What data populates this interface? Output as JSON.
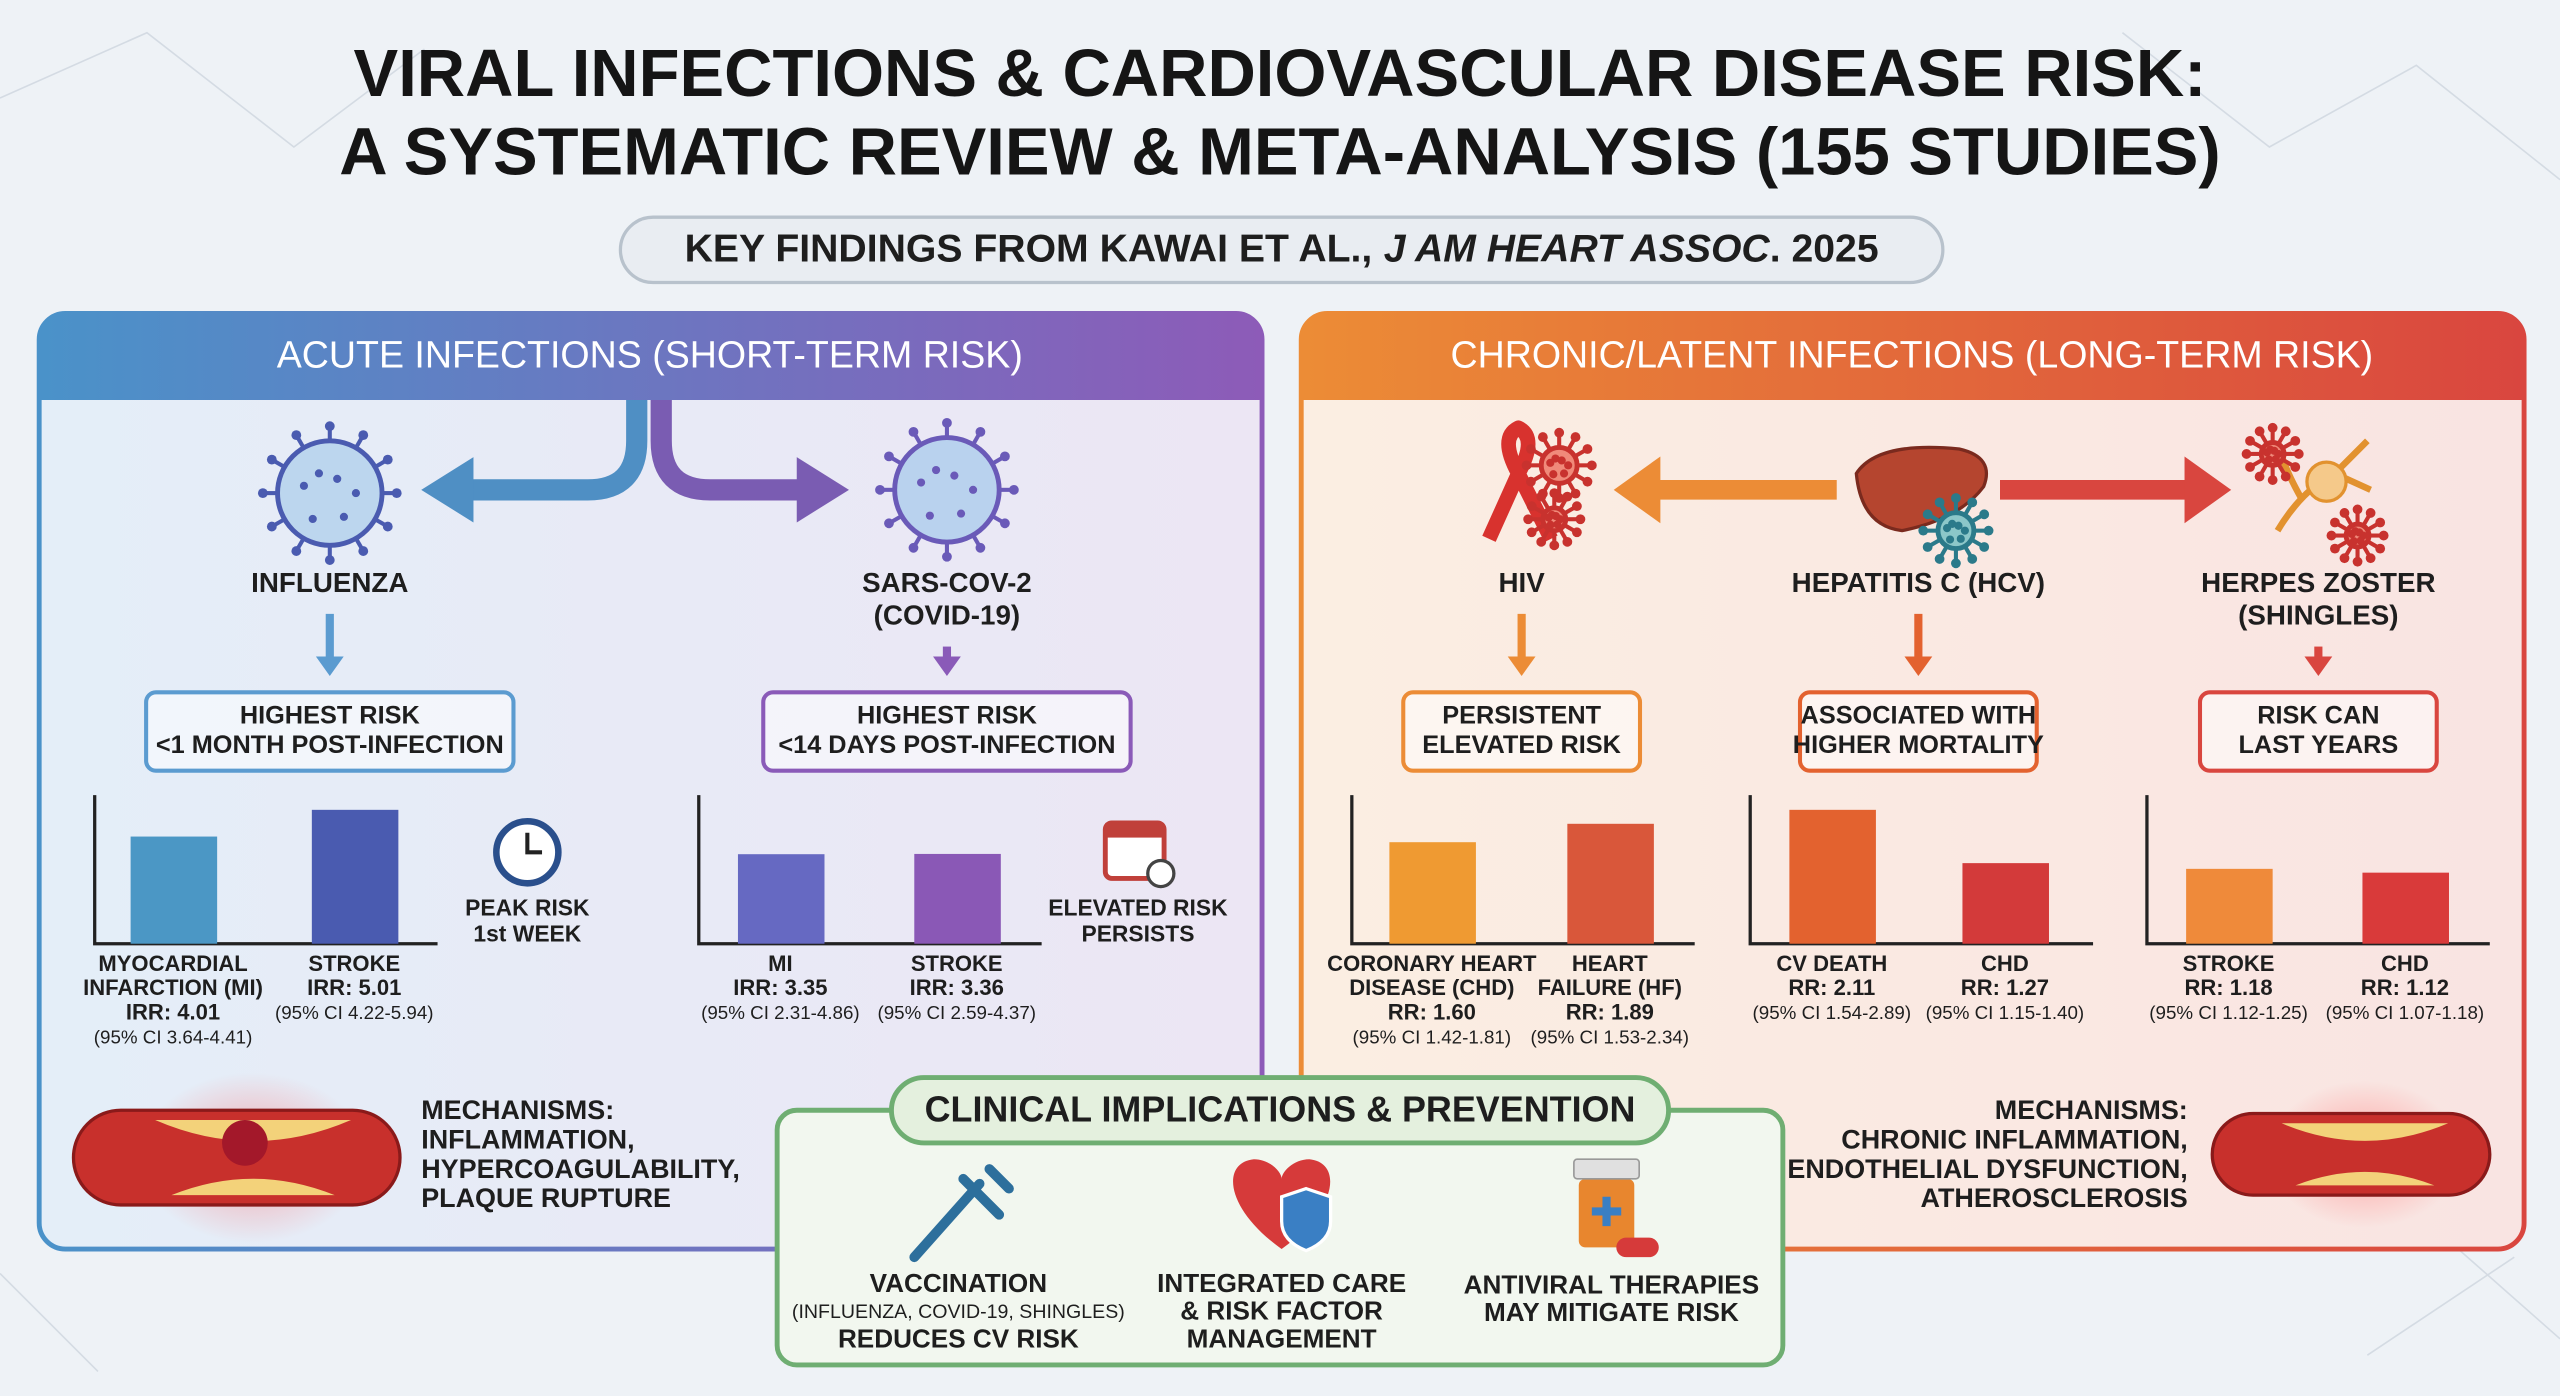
{
  "header": {
    "title_lines": [
      "VIRAL INFECTIONS & CARDIOVASCULAR DISEASE RISK:",
      "A SYSTEMATIC REVIEW & META-ANALYSIS (155 STUDIES)"
    ],
    "subtitle_prefix": "KEY FINDINGS FROM KAWAI ET AL.,",
    "subtitle_journal": "J AM HEART ASSOC",
    "subtitle_suffix": ". 2025"
  },
  "acute": {
    "heading": "ACUTE INFECTIONS (SHORT-TERM RISK)",
    "infections": [
      {
        "name_lines": [
          "INFLUENZA"
        ],
        "risk_lines": [
          "HIGHEST RISK",
          "<1 MONTH POST-INFECTION"
        ],
        "bars": [
          {
            "label_lines": [
              "MYOCARDIAL",
              "INFARCTION (MI)"
            ],
            "value": 4.01,
            "value_label": "IRR: 4.01",
            "ci": "(95% CI 3.64-4.41)",
            "color": "#4b97c5"
          },
          {
            "label_lines": [
              "STROKE"
            ],
            "value": 5.01,
            "value_label": "IRR: 5.01",
            "ci": "(95% CI 4.22-5.94)",
            "color": "#4a5bb0"
          }
        ],
        "note_lines": [
          "PEAK RISK",
          "1st WEEK"
        ]
      },
      {
        "name_lines": [
          "SARS-COV-2",
          "(COVID-19)"
        ],
        "risk_lines": [
          "HIGHEST RISK",
          "<14 DAYS POST-INFECTION"
        ],
        "bars": [
          {
            "label_lines": [
              "MI"
            ],
            "value": 3.35,
            "value_label": "IRR: 3.35",
            "ci": "(95% CI 2.31-4.86)",
            "color": "#6669c2"
          },
          {
            "label_lines": [
              "STROKE"
            ],
            "value": 3.36,
            "value_label": "IRR: 3.36",
            "ci": "(95% CI 2.59-4.37)",
            "color": "#8a58b6"
          }
        ],
        "note_lines": [
          "ELEVATED RISK",
          "PERSISTS"
        ]
      }
    ],
    "mechanisms_lines": [
      "MECHANISMS:",
      "INFLAMMATION,",
      "HYPERCOAGULABILITY,",
      "PLAQUE RUPTURE"
    ]
  },
  "chronic": {
    "heading": "CHRONIC/LATENT INFECTIONS (LONG-TERM RISK)",
    "infections": [
      {
        "name_lines": [
          "HIV"
        ],
        "risk_lines": [
          "PERSISTENT",
          "ELEVATED RISK"
        ],
        "bars": [
          {
            "label_lines": [
              "CORONARY HEART",
              "DISEASE (CHD)"
            ],
            "value": 1.6,
            "value_label": "RR: 1.60",
            "ci": "(95% CI 1.42-1.81)",
            "color": "#ef9a32"
          },
          {
            "label_lines": [
              "HEART",
              "FAILURE (HF)"
            ],
            "value": 1.89,
            "value_label": "RR: 1.89",
            "ci": "(95% CI 1.53-2.34)",
            "color": "#d9573a"
          }
        ]
      },
      {
        "name_lines": [
          "HEPATITIS C (HCV)"
        ],
        "risk_lines": [
          "ASSOCIATED WITH",
          "HIGHER MORTALITY"
        ],
        "bars": [
          {
            "label_lines": [
              "CV DEATH"
            ],
            "value": 2.11,
            "value_label": "RR: 2.11",
            "ci": "(95% CI 1.54-2.89)",
            "color": "#e3622f"
          },
          {
            "label_lines": [
              "CHD"
            ],
            "value": 1.27,
            "value_label": "RR: 1.27",
            "ci": "(95% CI 1.15-1.40)",
            "color": "#d33a3a"
          }
        ]
      },
      {
        "name_lines": [
          "HERPES ZOSTER",
          "(SHINGLES)"
        ],
        "risk_lines": [
          "RISK CAN",
          "LAST YEARS"
        ],
        "bars": [
          {
            "label_lines": [
              "STROKE"
            ],
            "value": 1.18,
            "value_label": "RR: 1.18",
            "ci": "(95% CI 1.12-1.25)",
            "color": "#ef8a3a"
          },
          {
            "label_lines": [
              "CHD"
            ],
            "value": 1.12,
            "value_label": "RR: 1.12",
            "ci": "(95% CI 1.07-1.18)",
            "color": "#d93a3a"
          }
        ]
      }
    ],
    "mechanisms_lines": [
      "MECHANISMS:",
      "CHRONIC INFLAMMATION,",
      "ENDOTHELIAL DYSFUNCTION,",
      "ATHEROSCLEROSIS"
    ]
  },
  "implications": {
    "heading": "CLINICAL IMPLICATIONS & PREVENTION",
    "items": [
      {
        "lines": [
          "VACCINATION",
          "(INFLUENZA, COVID-19, SHINGLES)",
          "REDUCES CV RISK"
        ]
      },
      {
        "lines": [
          "INTEGRATED CARE",
          "& RISK FACTOR",
          "MANAGEMENT"
        ]
      },
      {
        "lines": [
          "ANTIVIRAL THERAPIES",
          "MAY MITIGATE RISK"
        ]
      }
    ]
  }
}
